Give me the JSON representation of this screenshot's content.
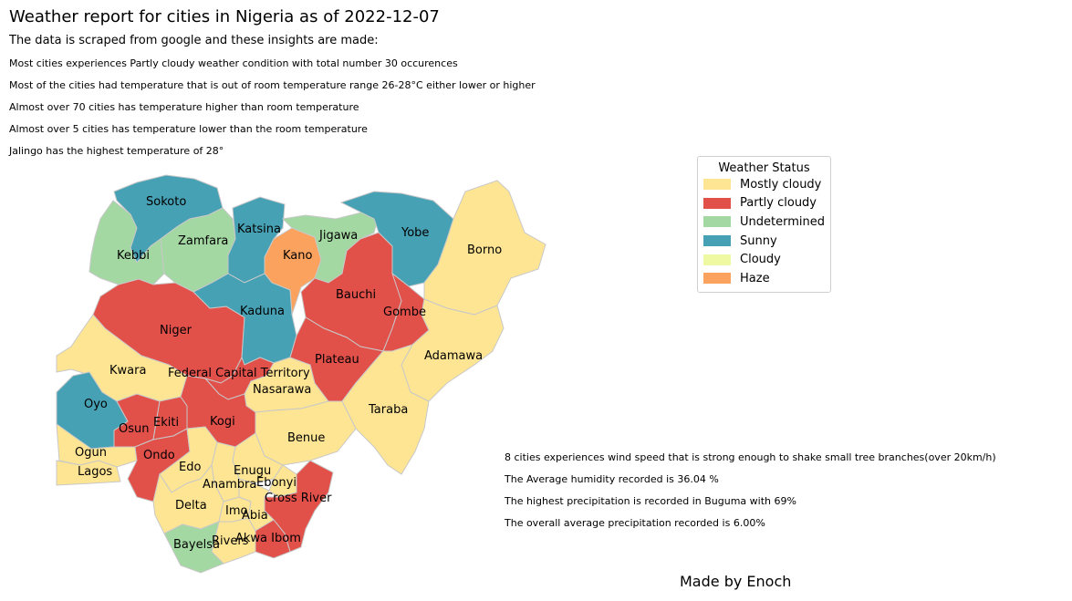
{
  "title": "Weather report for cities in Nigeria as of 2022-12-07",
  "subtitle": "The data is scraped from google and these insights are made:",
  "insights_top": [
    "Most cities experiences Partly cloudy weather condition with total number  30 occurences",
    "Most of the cities had temperature that is out of room temperature range 26-28°C either lower or higher",
    "Almost over 70 cities has temperature higher than room temperature",
    "Almost over 5 cities has temperature lower than the room temperature",
    "Jalingo has the highest temperature of 28°"
  ],
  "insights_bottom": [
    "8 cities experiences wind speed that is strong enough to shake small tree branches(over 20km/h)",
    "The Average humidity recorded is 36.04 %",
    "The highest precipitation is recorded in Buguma with 69%",
    "The overall average precipitation recorded is 6.00%"
  ],
  "credit": "Made by Enoch",
  "legend": {
    "title": "Weather Status",
    "items": [
      {
        "label": "Mostly cloudy",
        "color": "#fee593"
      },
      {
        "label": "Partly cloudy",
        "color": "#e2504a"
      },
      {
        "label": "Undetermined",
        "color": "#a3d8a2"
      },
      {
        "label": "Sunny",
        "color": "#47a1b5"
      },
      {
        "label": "Cloudy",
        "color": "#eef9a2"
      },
      {
        "label": "Haze",
        "color": "#fba35e"
      }
    ]
  },
  "states": [
    {
      "name": "Sokoto",
      "status": "Sunny"
    },
    {
      "name": "Kebbi",
      "status": "Undetermined"
    },
    {
      "name": "Zamfara",
      "status": "Undetermined"
    },
    {
      "name": "Katsina",
      "status": "Sunny"
    },
    {
      "name": "Kano",
      "status": "Haze"
    },
    {
      "name": "Jigawa",
      "status": "Undetermined"
    },
    {
      "name": "Yobe",
      "status": "Sunny"
    },
    {
      "name": "Borno",
      "status": "Mostly cloudy"
    },
    {
      "name": "Niger",
      "status": "Partly cloudy"
    },
    {
      "name": "Kaduna",
      "status": "Sunny"
    },
    {
      "name": "Bauchi",
      "status": "Partly cloudy"
    },
    {
      "name": "Gombe",
      "status": "Partly cloudy"
    },
    {
      "name": "Adamawa",
      "status": "Mostly cloudy"
    },
    {
      "name": "Kwara",
      "status": "Mostly cloudy"
    },
    {
      "name": "Federal Capital Territory",
      "status": "Partly cloudy"
    },
    {
      "name": "Nasarawa",
      "status": "Mostly cloudy"
    },
    {
      "name": "Plateau",
      "status": "Partly cloudy"
    },
    {
      "name": "Taraba",
      "status": "Mostly cloudy"
    },
    {
      "name": "Oyo",
      "status": "Sunny"
    },
    {
      "name": "Osun",
      "status": "Partly cloudy"
    },
    {
      "name": "Ekiti",
      "status": "Partly cloudy"
    },
    {
      "name": "Kogi",
      "status": "Partly cloudy"
    },
    {
      "name": "Benue",
      "status": "Mostly cloudy"
    },
    {
      "name": "Ogun",
      "status": "Mostly cloudy"
    },
    {
      "name": "Ondo",
      "status": "Partly cloudy"
    },
    {
      "name": "Lagos",
      "status": "Mostly cloudy"
    },
    {
      "name": "Edo",
      "status": "Mostly cloudy"
    },
    {
      "name": "Enugu",
      "status": "Mostly cloudy"
    },
    {
      "name": "Anambra",
      "status": "Mostly cloudy"
    },
    {
      "name": "Ebonyi",
      "status": "Mostly cloudy"
    },
    {
      "name": "Cross River",
      "status": "Partly cloudy"
    },
    {
      "name": "Delta",
      "status": "Mostly cloudy"
    },
    {
      "name": "Imo",
      "status": "Mostly cloudy"
    },
    {
      "name": "Abia",
      "status": "Mostly cloudy"
    },
    {
      "name": "Akwa Ibom",
      "status": "Partly cloudy"
    },
    {
      "name": "Rivers",
      "status": "Mostly cloudy"
    },
    {
      "name": "Bayelsa",
      "status": "Undetermined"
    }
  ]
}
